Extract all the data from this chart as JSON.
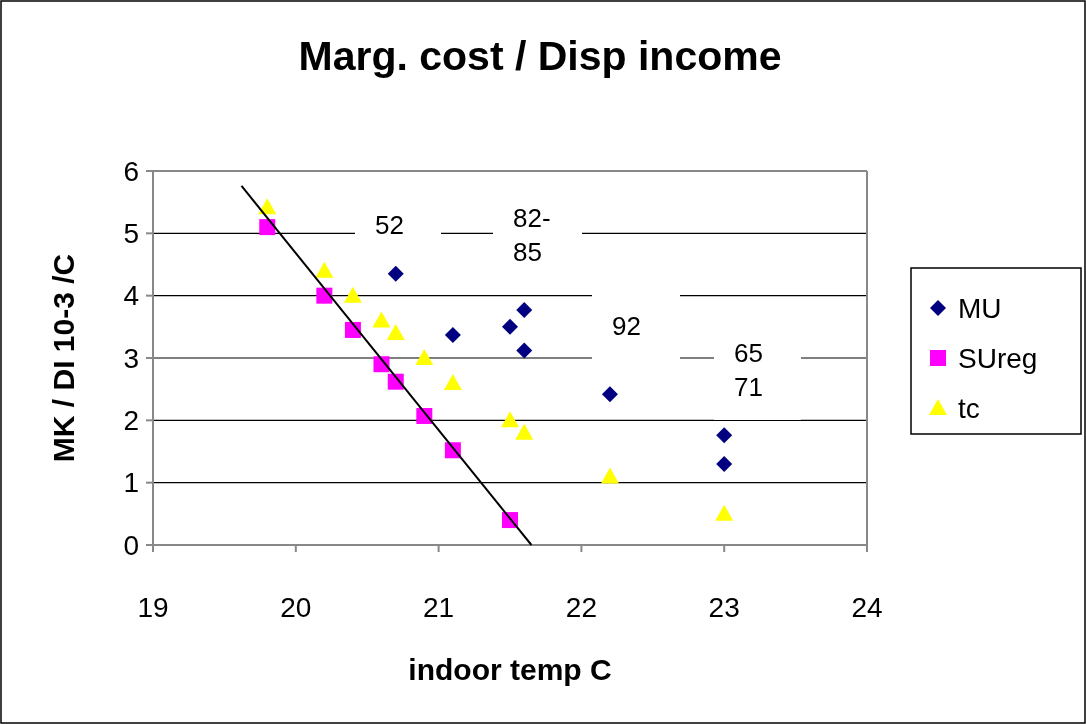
{
  "chart_data": {
    "type": "scatter",
    "title": "Marg. cost / Disp income",
    "xlabel": "indoor temp C",
    "ylabel": "MK / DI 10-3 /C",
    "xlim": [
      19,
      24
    ],
    "xticks": [
      19,
      20,
      21,
      22,
      23,
      24
    ],
    "ylim": [
      0,
      6
    ],
    "yticks": [
      0,
      1,
      2,
      3,
      4,
      5,
      6
    ],
    "grid": "y",
    "legend": "right",
    "series": [
      {
        "name": "MU",
        "color": "#000080",
        "marker": "diamond",
        "x": [
          20.7,
          21.1,
          21.5,
          21.6,
          21.6,
          22.2,
          23.0,
          23.0
        ],
        "values": [
          4.35,
          3.37,
          3.5,
          3.77,
          3.12,
          2.42,
          1.76,
          1.3
        ]
      },
      {
        "name": "SUreg",
        "color": "#ff00ff",
        "marker": "square",
        "x": [
          19.8,
          20.2,
          20.4,
          20.6,
          20.7,
          20.9,
          21.1,
          21.5
        ],
        "values": [
          5.1,
          4.0,
          3.45,
          2.9,
          2.62,
          2.07,
          1.52,
          0.4
        ]
      },
      {
        "name": "tc",
        "color": "#ffff00",
        "marker": "triangle",
        "x": [
          19.8,
          20.2,
          20.4,
          20.6,
          20.7,
          20.9,
          21.1,
          21.5,
          21.6,
          22.2,
          23.0
        ],
        "values": [
          5.42,
          4.4,
          4.0,
          3.6,
          3.4,
          3.0,
          2.6,
          2.0,
          1.8,
          1.1,
          0.5
        ]
      },
      {
        "type": "line",
        "color": "#000000",
        "marker": "none",
        "x": [
          19.62,
          21.65
        ],
        "values": [
          5.76,
          0
        ]
      }
    ],
    "annotations": [
      "52",
      "82-\n85",
      "92",
      "65\n71"
    ]
  }
}
